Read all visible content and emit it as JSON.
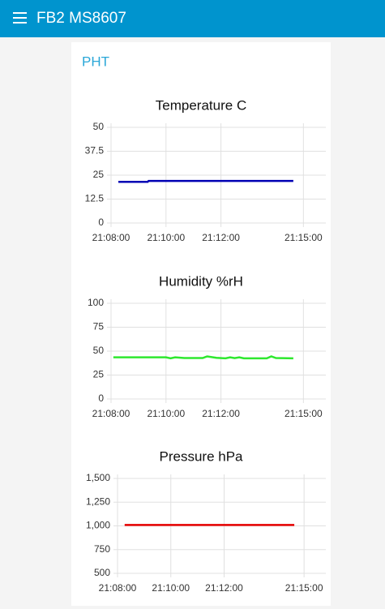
{
  "header": {
    "title": "FB2 MS8607"
  },
  "group": {
    "title": "PHT"
  },
  "chart_data": [
    {
      "type": "line",
      "title": "Temperature C",
      "color": "#0000b4",
      "x": [
        "21:08:16",
        "21:09:20",
        "21:09:22",
        "21:11:00",
        "21:12:30",
        "21:14:38"
      ],
      "values": [
        21.5,
        21.5,
        22,
        22,
        22,
        22
      ],
      "xlim": [
        "21:08:00",
        "21:15:49"
      ],
      "xticks": [
        "21:08:00",
        "21:10:00",
        "21:12:00",
        "21:15:00"
      ],
      "ylim": [
        0,
        50
      ],
      "yticks": [
        0,
        12.5,
        25,
        37.5,
        50
      ],
      "grid": true
    },
    {
      "type": "line",
      "title": "Humidity %rH",
      "color": "#2ee82e",
      "x": [
        "21:08:05",
        "21:10:00",
        "21:10:10",
        "21:10:20",
        "21:10:40",
        "21:11:20",
        "21:11:30",
        "21:11:50",
        "21:12:10",
        "21:12:20",
        "21:12:30",
        "21:12:40",
        "21:12:50",
        "21:13:40",
        "21:13:50",
        "21:14:00",
        "21:14:38"
      ],
      "values": [
        43.5,
        43.5,
        42.5,
        43.5,
        42.8,
        42.8,
        44.5,
        43,
        42.5,
        43.5,
        42.7,
        43.5,
        42.5,
        42.5,
        44.5,
        42.8,
        42.5
      ],
      "xlim": [
        "21:08:00",
        "21:15:49"
      ],
      "xticks": [
        "21:08:00",
        "21:10:00",
        "21:12:00",
        "21:15:00"
      ],
      "ylim": [
        0,
        100
      ],
      "yticks": [
        0,
        25,
        50,
        75,
        100
      ],
      "grid": true
    },
    {
      "type": "line",
      "title": "Pressure hPa",
      "color": "#e60000",
      "x": [
        "21:08:16",
        "21:10:00",
        "21:12:00",
        "21:14:38"
      ],
      "values": [
        1010,
        1010,
        1010,
        1010
      ],
      "xlim": [
        "21:08:00",
        "21:15:49"
      ],
      "xticks": [
        "21:08:00",
        "21:10:00",
        "21:12:00",
        "21:15:00"
      ],
      "ylim": [
        500,
        1500
      ],
      "yticks": [
        500,
        750,
        {
          "value": 1000,
          "label": "1,000"
        },
        {
          "value": 1250,
          "label": "1,250"
        },
        {
          "value": 1500,
          "label": "1,500"
        }
      ],
      "grid": true
    }
  ]
}
